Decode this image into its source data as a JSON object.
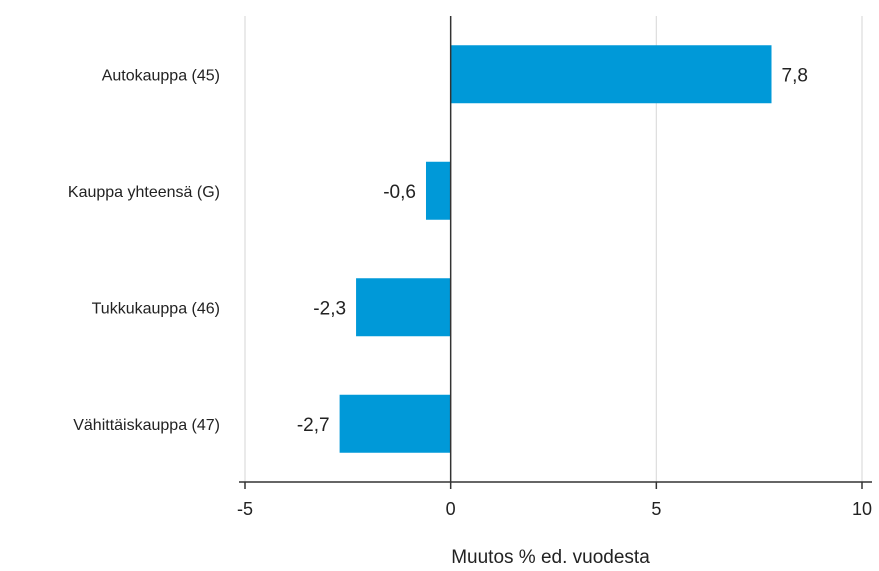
{
  "chart_data": {
    "type": "bar",
    "orientation": "horizontal",
    "categories": [
      "Autokauppa (45)",
      "Kauppa yhteensä (G)",
      "Tukkukauppa (46)",
      "Vähittäiskauppa (47)"
    ],
    "values": [
      7.8,
      -0.6,
      -2.3,
      -2.7
    ],
    "value_labels": [
      "7,8",
      "-0,6",
      "-2,3",
      "-2,7"
    ],
    "xlabel": "Muutos % ed. vuodesta",
    "xlim": [
      -5,
      10
    ],
    "xticks": [
      -5,
      0,
      5,
      10
    ],
    "xtick_labels": [
      "-5",
      "0",
      "5",
      "10"
    ],
    "grid": "vertical",
    "bar_color": "#0099d8"
  }
}
